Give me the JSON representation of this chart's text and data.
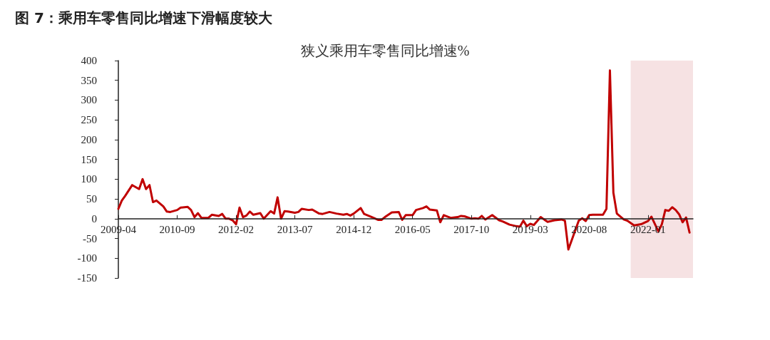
{
  "chart_data": {
    "type": "line",
    "title": "图 7：乘用车零售同比增速下滑幅度较大",
    "subtitle": "狭义乘用车零售同比增速%",
    "x": [
      "2009-04",
      "2009-05",
      "2009-06",
      "2009-08",
      "2009-10",
      "2009-11",
      "2009-12",
      "2010-01",
      "2010-02",
      "2010-03",
      "2010-05",
      "2010-06",
      "2010-07",
      "2010-09",
      "2010-10",
      "2010-12",
      "2011-01",
      "2011-02",
      "2011-03",
      "2011-04",
      "2011-06",
      "2011-07",
      "2011-09",
      "2011-10",
      "2011-11",
      "2011-12",
      "2012-01",
      "2012-02",
      "2012-03",
      "2012-04",
      "2012-05",
      "2012-06",
      "2012-07",
      "2012-09",
      "2012-10",
      "2012-12",
      "2013-01",
      "2013-02",
      "2013-03",
      "2013-04",
      "2013-05",
      "2013-07",
      "2013-08",
      "2013-09",
      "2013-11",
      "2013-12",
      "2014-02",
      "2014-03",
      "2014-05",
      "2014-07",
      "2014-09",
      "2014-10",
      "2014-11",
      "2014-12",
      "2015-02",
      "2015-03",
      "2015-05",
      "2015-07",
      "2015-08",
      "2015-09",
      "2015-11",
      "2016-01",
      "2016-02",
      "2016-03",
      "2016-05",
      "2016-06",
      "2016-08",
      "2016-09",
      "2016-10",
      "2016-12",
      "2017-01",
      "2017-02",
      "2017-04",
      "2017-06",
      "2017-07",
      "2017-08",
      "2017-10",
      "2017-11",
      "2017-12",
      "2018-01",
      "2018-02",
      "2018-04",
      "2018-06",
      "2018-07",
      "2018-09",
      "2018-11",
      "2018-12",
      "2019-01",
      "2019-02",
      "2019-03",
      "2019-04",
      "2019-06",
      "2019-08",
      "2019-10",
      "2019-12",
      "2020-01",
      "2020-02",
      "2020-05",
      "2020-06",
      "2020-07",
      "2020-08",
      "2020-09",
      "2020-12",
      "2021-01",
      "2021-02",
      "2021-03",
      "2021-04",
      "2021-06",
      "2021-07",
      "2021-09",
      "2021-11",
      "2022-01",
      "2022-02",
      "2022-04",
      "2022-05",
      "2022-06",
      "2022-07",
      "2022-08",
      "2022-09",
      "2022-10",
      "2022-11",
      "2022-12",
      "2023-01"
    ],
    "series": [
      {
        "color": "#c00000",
        "values": [
          25,
          46,
          58,
          85,
          75,
          100,
          75,
          85,
          42,
          46,
          31,
          18,
          17,
          22,
          28,
          30,
          22,
          4,
          14,
          2,
          2,
          10,
          7,
          12,
          0,
          0,
          -4,
          -14,
          28,
          4,
          8,
          18,
          10,
          14,
          0,
          19,
          13,
          54,
          0,
          19,
          18,
          15,
          17,
          25,
          22,
          23,
          13,
          12,
          17,
          13,
          10,
          12,
          8,
          13,
          27,
          12,
          5,
          -3,
          -3,
          4,
          16,
          17,
          -3,
          9,
          9,
          22,
          27,
          31,
          23,
          21,
          -9,
          9,
          2,
          4,
          7,
          6,
          0,
          1,
          0,
          7,
          -2,
          9,
          -4,
          -7,
          -15,
          -19,
          -20,
          -5,
          -19,
          -13,
          -16,
          4,
          -8,
          -4,
          -2,
          -5,
          -78,
          -5,
          1,
          -6,
          9,
          10,
          10,
          25,
          375,
          66,
          13,
          -2,
          -5,
          -17,
          -14,
          -6,
          5,
          -32,
          -14,
          22,
          20,
          29,
          22,
          11,
          -9,
          3,
          -35
        ]
      }
    ],
    "xlim": [
      "2009-04",
      "2023-02"
    ],
    "xticks": [
      "2009-04",
      "2010-09",
      "2012-02",
      "2013-07",
      "2014-12",
      "2016-05",
      "2017-10",
      "2019-03",
      "2020-08",
      "2022-01"
    ],
    "ylim": [
      -150,
      400
    ],
    "yticks": [
      -150,
      -100,
      -50,
      0,
      50,
      100,
      150,
      200,
      250,
      300,
      350,
      400
    ],
    "bands": [
      {
        "axis": "x",
        "from": "2021-08",
        "to": "2023-02",
        "color": "#f6e2e3"
      }
    ],
    "grid": false,
    "marker": "none",
    "line_style": "solid"
  }
}
